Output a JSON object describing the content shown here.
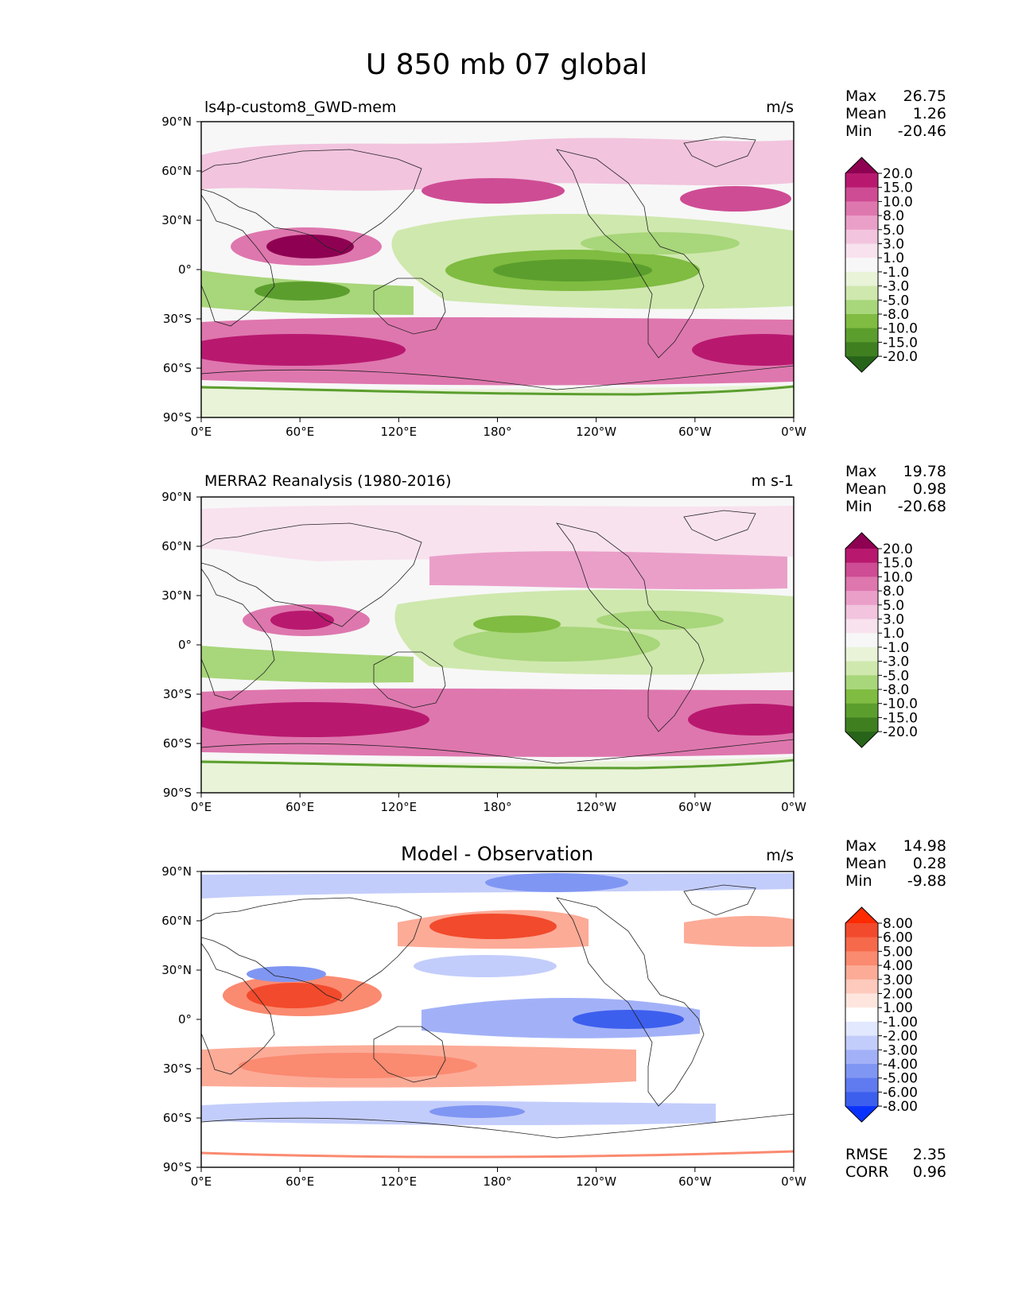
{
  "title": "U 850 mb 07 global",
  "chart_data": [
    {
      "type": "heatmap",
      "name": "model",
      "subtitle": "ls4p-custom8_GWD-mem",
      "units": "m/s",
      "stats": [
        {
          "label": "Max",
          "value": "26.75"
        },
        {
          "label": "Mean",
          "value": "1.26"
        },
        {
          "label": "Min",
          "value": "-20.46"
        }
      ],
      "xticks": [
        "0°E",
        "60°E",
        "120°E",
        "180°",
        "120°W",
        "60°W",
        "0°W"
      ],
      "yticks": [
        "90°N",
        "60°N",
        "30°N",
        "0°",
        "30°S",
        "60°S",
        "90°S"
      ],
      "xlim": [
        0,
        360
      ],
      "ylim": [
        -90,
        90
      ],
      "colorbar": {
        "levels": [
          "20.0",
          "15.0",
          "10.0",
          "8.0",
          "5.0",
          "3.0",
          "1.0",
          "-1.0",
          "-3.0",
          "-5.0",
          "-8.0",
          "-10.0",
          "-15.0",
          "-20.0"
        ],
        "colors": [
          "#8e0152",
          "#b8196f",
          "#ce4c94",
          "#de77ae",
          "#ea9fc9",
          "#f2c4de",
          "#f8e2ee",
          "#f7f7f7",
          "#e8f3d8",
          "#cfe8ae",
          "#a8d67a",
          "#7fbc41",
          "#5b9e2e",
          "#3f7f20",
          "#276419"
        ]
      }
    },
    {
      "type": "heatmap",
      "name": "observation",
      "subtitle": "MERRA2 Reanalysis (1980-2016)",
      "units": "m s-1",
      "stats": [
        {
          "label": "Max",
          "value": "19.78"
        },
        {
          "label": "Mean",
          "value": "0.98"
        },
        {
          "label": "Min",
          "value": "-20.68"
        }
      ],
      "xticks": [
        "0°E",
        "60°E",
        "120°E",
        "180°",
        "120°W",
        "60°W",
        "0°W"
      ],
      "yticks": [
        "90°N",
        "60°N",
        "30°N",
        "0°",
        "30°S",
        "60°S",
        "90°S"
      ],
      "xlim": [
        0,
        360
      ],
      "ylim": [
        -90,
        90
      ],
      "colorbar": {
        "levels": [
          "20.0",
          "15.0",
          "10.0",
          "8.0",
          "5.0",
          "3.0",
          "1.0",
          "-1.0",
          "-3.0",
          "-5.0",
          "-8.0",
          "-10.0",
          "-15.0",
          "-20.0"
        ],
        "colors": [
          "#8e0152",
          "#b8196f",
          "#ce4c94",
          "#de77ae",
          "#ea9fc9",
          "#f2c4de",
          "#f8e2ee",
          "#f7f7f7",
          "#e8f3d8",
          "#cfe8ae",
          "#a8d67a",
          "#7fbc41",
          "#5b9e2e",
          "#3f7f20",
          "#276419"
        ]
      }
    },
    {
      "type": "heatmap",
      "name": "difference",
      "subtitle": "Model - Observation",
      "units": "m/s",
      "stats": [
        {
          "label": "Max",
          "value": "14.98"
        },
        {
          "label": "Mean",
          "value": "0.28"
        },
        {
          "label": "Min",
          "value": "-9.88"
        }
      ],
      "extra_stats": [
        {
          "label": "RMSE",
          "value": "2.35"
        },
        {
          "label": "CORR",
          "value": "0.96"
        }
      ],
      "xticks": [
        "0°E",
        "60°E",
        "120°E",
        "180°",
        "120°W",
        "60°W",
        "0°W"
      ],
      "yticks": [
        "90°N",
        "60°N",
        "30°N",
        "0°",
        "30°S",
        "60°S",
        "90°S"
      ],
      "xlim": [
        0,
        360
      ],
      "ylim": [
        -90,
        90
      ],
      "colorbar": {
        "levels": [
          "8.00",
          "6.00",
          "5.00",
          "4.00",
          "3.00",
          "2.00",
          "1.00",
          "-1.00",
          "-2.00",
          "-3.00",
          "-4.00",
          "-5.00",
          "-6.00",
          "-8.00"
        ],
        "colors": [
          "#ff2a00",
          "#f24a2c",
          "#f7694b",
          "#fa8a70",
          "#fcab97",
          "#fdcabd",
          "#fee6df",
          "#ffffff",
          "#e2e8fd",
          "#c3cdfb",
          "#a2b1f7",
          "#8096f3",
          "#5f7bef",
          "#3d5fee",
          "#0a32ff"
        ]
      }
    }
  ]
}
